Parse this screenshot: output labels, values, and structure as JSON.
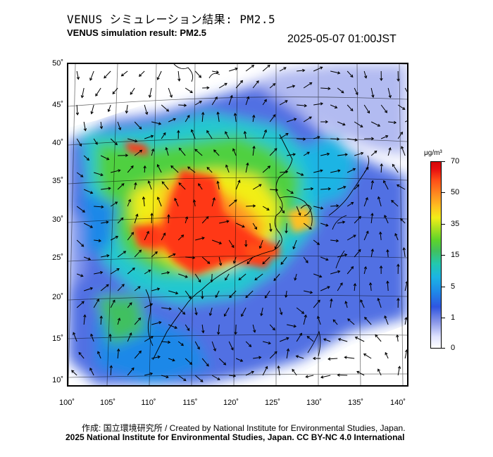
{
  "header": {
    "title_jp": "VENUS シミュレーション結果: PM2.5",
    "title_en": "VENUS simulation result: PM2.5",
    "timestamp": "2025-05-07 01:00JST"
  },
  "map": {
    "lat_labels": [
      "50˚",
      "45˚",
      "40˚",
      "35˚",
      "30˚",
      "25˚",
      "20˚",
      "15˚",
      "10˚"
    ],
    "lon_labels": [
      "100˚",
      "105˚",
      "110˚",
      "115˚",
      "120˚",
      "125˚",
      "130˚",
      "135˚",
      "140˚"
    ],
    "concentration_field": "PM2.5"
  },
  "colorbar": {
    "unit": "μg/m³",
    "ticks": [
      "70",
      "50",
      "35",
      "15",
      "5",
      "1",
      "0"
    ],
    "colors": [
      "#ffffff",
      "#8896e8",
      "#2f55e0",
      "#1bb4e4",
      "#40c060",
      "#f2ee18",
      "#ff9020",
      "#e81010"
    ]
  },
  "footer": {
    "credit_jp": "作成: 国立環境研究所 / Created by National Institute for Environmental Studies, Japan.",
    "copyright": "2025 National Institute for Environmental Studies, Japan. CC BY-NC 4.0 International"
  }
}
